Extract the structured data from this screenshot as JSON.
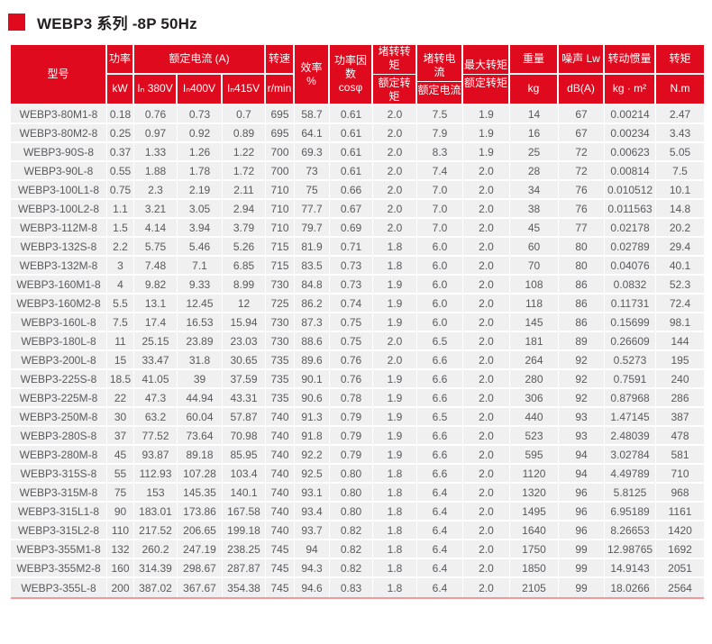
{
  "title": {
    "text": "WEBP3 系列 -8P 50Hz"
  },
  "colors": {
    "header_red": "#e00a1e",
    "row_bg": "#f0f0f1",
    "cell_text": "#58595b",
    "bottom_line": "#f4989c",
    "title_text": "#231f20"
  },
  "table": {
    "header": {
      "model": "型号",
      "power": {
        "top": "功率",
        "bottom": "kW"
      },
      "rated_current_group": "额定电流 (A)",
      "current_subs": [
        "Iₙ 380V",
        "Iₙ400V",
        "Iₙ415V"
      ],
      "speed": {
        "top": "转速",
        "bottom": "r/min"
      },
      "efficiency": "效率 %",
      "power_factor": {
        "top": "功率因数",
        "bottom": "cosφ"
      },
      "locked_torque_ratio": {
        "top": "堵转转矩",
        "bottom": "额定转矩"
      },
      "locked_current_ratio": {
        "top": "堵转电流",
        "bottom": "额定电流"
      },
      "max_torque_ratio": {
        "top": "最大转矩",
        "bottom": "额定转矩"
      },
      "weight": {
        "top": "重量",
        "bottom": "kg"
      },
      "noise": {
        "top": "噪声 Lw",
        "bottom": "dB(A)"
      },
      "inertia": {
        "top": "转动惯量",
        "bottom": "kg · m²"
      },
      "torque": {
        "top": "转矩",
        "bottom": "N.m"
      }
    },
    "rows": [
      [
        "WEBP3-80M1-8",
        "0.18",
        "0.76",
        "0.73",
        "0.7",
        "695",
        "58.7",
        "0.61",
        "2.0",
        "7.5",
        "1.9",
        "14",
        "67",
        "0.00214",
        "2.47"
      ],
      [
        "WEBP3-80M2-8",
        "0.25",
        "0.97",
        "0.92",
        "0.89",
        "695",
        "64.1",
        "0.61",
        "2.0",
        "7.9",
        "1.9",
        "16",
        "67",
        "0.00234",
        "3.43"
      ],
      [
        "WEBP3-90S-8",
        "0.37",
        "1.33",
        "1.26",
        "1.22",
        "700",
        "69.3",
        "0.61",
        "2.0",
        "8.3",
        "1.9",
        "25",
        "72",
        "0.00623",
        "5.05"
      ],
      [
        "WEBP3-90L-8",
        "0.55",
        "1.88",
        "1.78",
        "1.72",
        "700",
        "73",
        "0.61",
        "2.0",
        "7.4",
        "2.0",
        "28",
        "72",
        "0.00814",
        "7.5"
      ],
      [
        "WEBP3-100L1-8",
        "0.75",
        "2.3",
        "2.19",
        "2.11",
        "710",
        "75",
        "0.66",
        "2.0",
        "7.0",
        "2.0",
        "34",
        "76",
        "0.010512",
        "10.1"
      ],
      [
        "WEBP3-100L2-8",
        "1.1",
        "3.21",
        "3.05",
        "2.94",
        "710",
        "77.7",
        "0.67",
        "2.0",
        "7.0",
        "2.0",
        "38",
        "76",
        "0.011563",
        "14.8"
      ],
      [
        "WEBP3-112M-8",
        "1.5",
        "4.14",
        "3.94",
        "3.79",
        "710",
        "79.7",
        "0.69",
        "2.0",
        "7.0",
        "2.0",
        "45",
        "77",
        "0.02178",
        "20.2"
      ],
      [
        "WEBP3-132S-8",
        "2.2",
        "5.75",
        "5.46",
        "5.26",
        "715",
        "81.9",
        "0.71",
        "1.8",
        "6.0",
        "2.0",
        "60",
        "80",
        "0.02789",
        "29.4"
      ],
      [
        "WEBP3-132M-8",
        "3",
        "7.48",
        "7.1",
        "6.85",
        "715",
        "83.5",
        "0.73",
        "1.8",
        "6.0",
        "2.0",
        "70",
        "80",
        "0.04076",
        "40.1"
      ],
      [
        "WEBP3-160M1-8",
        "4",
        "9.82",
        "9.33",
        "8.99",
        "730",
        "84.8",
        "0.73",
        "1.9",
        "6.0",
        "2.0",
        "108",
        "86",
        "0.0832",
        "52.3"
      ],
      [
        "WEBP3-160M2-8",
        "5.5",
        "13.1",
        "12.45",
        "12",
        "725",
        "86.2",
        "0.74",
        "1.9",
        "6.0",
        "2.0",
        "118",
        "86",
        "0.11731",
        "72.4"
      ],
      [
        "WEBP3-160L-8",
        "7.5",
        "17.4",
        "16.53",
        "15.94",
        "730",
        "87.3",
        "0.75",
        "1.9",
        "6.0",
        "2.0",
        "145",
        "86",
        "0.15699",
        "98.1"
      ],
      [
        "WEBP3-180L-8",
        "11",
        "25.15",
        "23.89",
        "23.03",
        "730",
        "88.6",
        "0.75",
        "2.0",
        "6.5",
        "2.0",
        "181",
        "89",
        "0.26609",
        "144"
      ],
      [
        "WEBP3-200L-8",
        "15",
        "33.47",
        "31.8",
        "30.65",
        "735",
        "89.6",
        "0.76",
        "2.0",
        "6.6",
        "2.0",
        "264",
        "92",
        "0.5273",
        "195"
      ],
      [
        "WEBP3-225S-8",
        "18.5",
        "41.05",
        "39",
        "37.59",
        "735",
        "90.1",
        "0.76",
        "1.9",
        "6.6",
        "2.0",
        "280",
        "92",
        "0.7591",
        "240"
      ],
      [
        "WEBP3-225M-8",
        "22",
        "47.3",
        "44.94",
        "43.31",
        "735",
        "90.6",
        "0.78",
        "1.9",
        "6.6",
        "2.0",
        "306",
        "92",
        "0.87968",
        "286"
      ],
      [
        "WEBP3-250M-8",
        "30",
        "63.2",
        "60.04",
        "57.87",
        "740",
        "91.3",
        "0.79",
        "1.9",
        "6.5",
        "2.0",
        "440",
        "93",
        "1.47145",
        "387"
      ],
      [
        "WEBP3-280S-8",
        "37",
        "77.52",
        "73.64",
        "70.98",
        "740",
        "91.8",
        "0.79",
        "1.9",
        "6.6",
        "2.0",
        "523",
        "93",
        "2.48039",
        "478"
      ],
      [
        "WEBP3-280M-8",
        "45",
        "93.87",
        "89.18",
        "85.95",
        "740",
        "92.2",
        "0.79",
        "1.9",
        "6.6",
        "2.0",
        "595",
        "94",
        "3.02784",
        "581"
      ],
      [
        "WEBP3-315S-8",
        "55",
        "112.93",
        "107.28",
        "103.4",
        "740",
        "92.5",
        "0.80",
        "1.8",
        "6.6",
        "2.0",
        "1120",
        "94",
        "4.49789",
        "710"
      ],
      [
        "WEBP3-315M-8",
        "75",
        "153",
        "145.35",
        "140.1",
        "740",
        "93.1",
        "0.80",
        "1.8",
        "6.4",
        "2.0",
        "1320",
        "96",
        "5.8125",
        "968"
      ],
      [
        "WEBP3-315L1-8",
        "90",
        "183.01",
        "173.86",
        "167.58",
        "740",
        "93.4",
        "0.80",
        "1.8",
        "6.4",
        "2.0",
        "1495",
        "96",
        "6.95189",
        "1161"
      ],
      [
        "WEBP3-315L2-8",
        "110",
        "217.52",
        "206.65",
        "199.18",
        "740",
        "93.7",
        "0.82",
        "1.8",
        "6.4",
        "2.0",
        "1640",
        "96",
        "8.26653",
        "1420"
      ],
      [
        "WEBP3-355M1-8",
        "132",
        "260.2",
        "247.19",
        "238.25",
        "745",
        "94",
        "0.82",
        "1.8",
        "6.4",
        "2.0",
        "1750",
        "99",
        "12.98765",
        "1692"
      ],
      [
        "WEBP3-355M2-8",
        "160",
        "314.39",
        "298.67",
        "287.87",
        "745",
        "94.3",
        "0.82",
        "1.8",
        "6.4",
        "2.0",
        "1850",
        "99",
        "14.9143",
        "2051"
      ],
      [
        "WEBP3-355L-8",
        "200",
        "387.02",
        "367.67",
        "354.38",
        "745",
        "94.6",
        "0.83",
        "1.8",
        "6.4",
        "2.0",
        "2105",
        "99",
        "18.0266",
        "2564"
      ]
    ]
  }
}
